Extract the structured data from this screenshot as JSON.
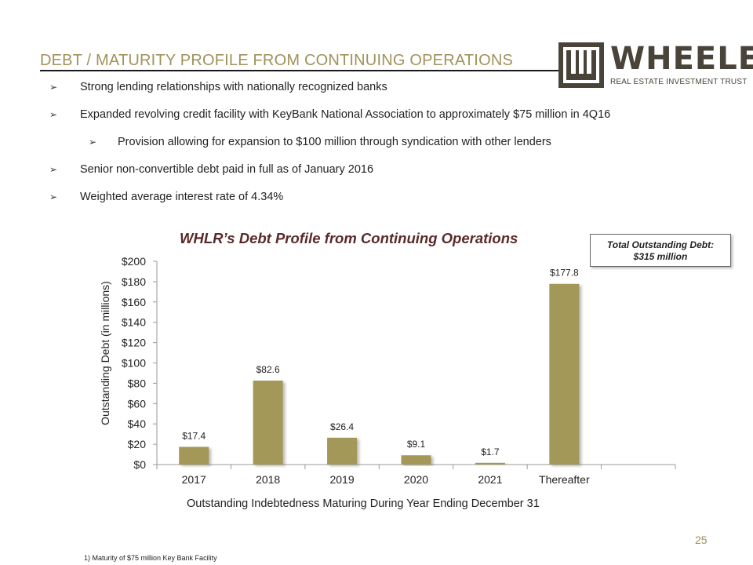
{
  "header": {
    "title": "DEBT / MATURITY PROFILE FROM CONTINUING OPERATIONS"
  },
  "logo": {
    "name": "WHEELER",
    "subtitle": "REAL ESTATE INVESTMENT TRUST"
  },
  "bullets": [
    "Strong lending relationships with nationally recognized banks",
    "Expanded revolving credit facility with KeyBank National Association to approximately $75 million in 4Q16",
    "Provision allowing for expansion to $100 million through syndication with other lenders",
    "Senior non-convertible debt paid in full as of January 2016",
    "Weighted average interest rate of 4.34%"
  ],
  "total_box": {
    "line1": "Total Outstanding Debt:",
    "line2": "$315 million"
  },
  "colors": {
    "bar": "#a39859",
    "accent": "#a0925a",
    "chart_title": "#5a2a2a"
  },
  "chart_data": {
    "type": "bar",
    "title": "WHLR’s Debt Profile from Continuing Operations",
    "ylabel": "Outstanding Debt (in millions)",
    "xlabel": "Outstanding  Indebtedness Maturing During Year  Ending December 31",
    "categories": [
      "2017",
      "2018",
      "2019",
      "2020",
      "2021",
      "Thereafter",
      ""
    ],
    "values": [
      17.4,
      82.6,
      26.4,
      9.1,
      1.7,
      177.8,
      null
    ],
    "data_labels": [
      "$17.4",
      "$82.6",
      "$26.4",
      "$9.1",
      "$1.7",
      "$177.8",
      ""
    ],
    "ylim": [
      0,
      200
    ],
    "yticks": [
      0,
      20,
      40,
      60,
      80,
      100,
      120,
      140,
      160,
      180,
      200
    ],
    "ytick_labels": [
      "$0",
      "$20",
      "$40",
      "$60",
      "$80",
      "$100",
      "$120",
      "$140",
      "$160",
      "$180",
      "$200"
    ],
    "grid": false
  },
  "page_number": "25",
  "footnote": "1)  Maturity of $75 million Key Bank Facility"
}
